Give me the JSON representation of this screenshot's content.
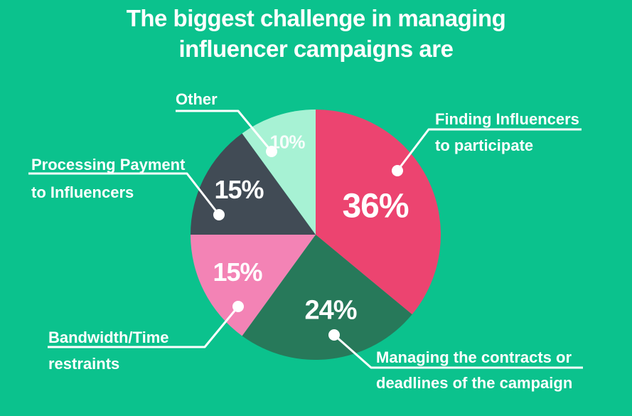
{
  "title": {
    "line1": "The biggest challenge in managing",
    "line2": "influencer campaigns are"
  },
  "colors": {
    "background": "#0BC28D",
    "text": "#FFFFFF",
    "leader_line": "#FFFFFF"
  },
  "chart_data": {
    "type": "pie",
    "title": "The biggest challenge in managing influencer campaigns are",
    "start_angle_deg": -90,
    "direction": "clockwise",
    "legend": "none",
    "segments": [
      {
        "label": "Finding Influencers to participate",
        "value": 36,
        "pct_label": "36%",
        "color": "#EC4470",
        "callout": [
          "Finding Influencers",
          "to participate"
        ]
      },
      {
        "label": "Managing the contracts or deadlines of the campaign",
        "value": 24,
        "pct_label": "24%",
        "color": "#27795A",
        "callout": [
          "Managing the contracts or",
          "deadlines of the campaign"
        ]
      },
      {
        "label": "Bandwidth/Time restraints",
        "value": 15,
        "pct_label": "15%",
        "color": "#F383B5",
        "callout": [
          "Bandwidth/Time",
          "restraints"
        ]
      },
      {
        "label": "Processing Payment to Influencers",
        "value": 15,
        "pct_label": "15%",
        "color": "#414B55",
        "callout": [
          "Processing Payment",
          "to Influencers"
        ]
      },
      {
        "label": "Other",
        "value": 10,
        "pct_label": "10%",
        "color": "#A7F2D4",
        "callout": [
          "Other"
        ]
      }
    ]
  }
}
